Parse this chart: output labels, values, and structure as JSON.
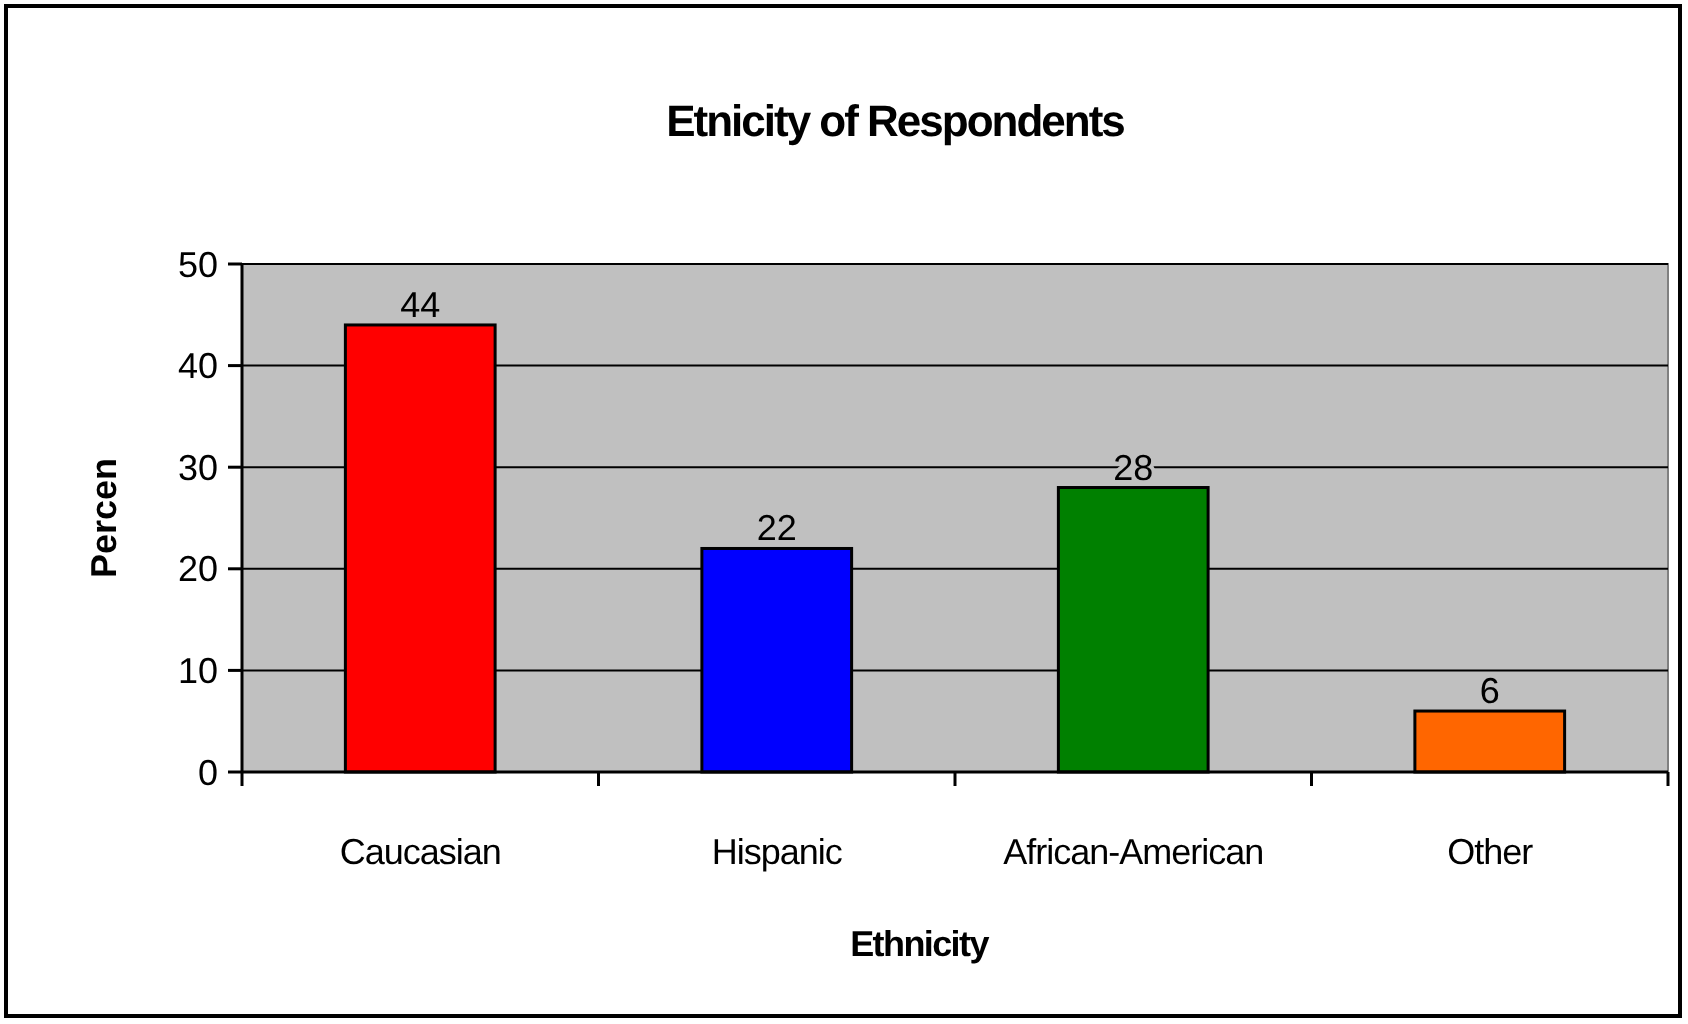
{
  "chart_data": {
    "type": "bar",
    "title": "Etnicity of Respondents",
    "xlabel": "Ethnicity",
    "ylabel": "Percen",
    "categories": [
      "Caucasian",
      "Hispanic",
      "African-American",
      "Other"
    ],
    "values": [
      44,
      22,
      28,
      6
    ],
    "colors": [
      "#ff0000",
      "#0000ff",
      "#008000",
      "#ff6600"
    ],
    "ylim": [
      0,
      50
    ],
    "yticks": [
      0,
      10,
      20,
      30,
      40,
      50
    ],
    "grid": "y",
    "data_labels": true
  }
}
